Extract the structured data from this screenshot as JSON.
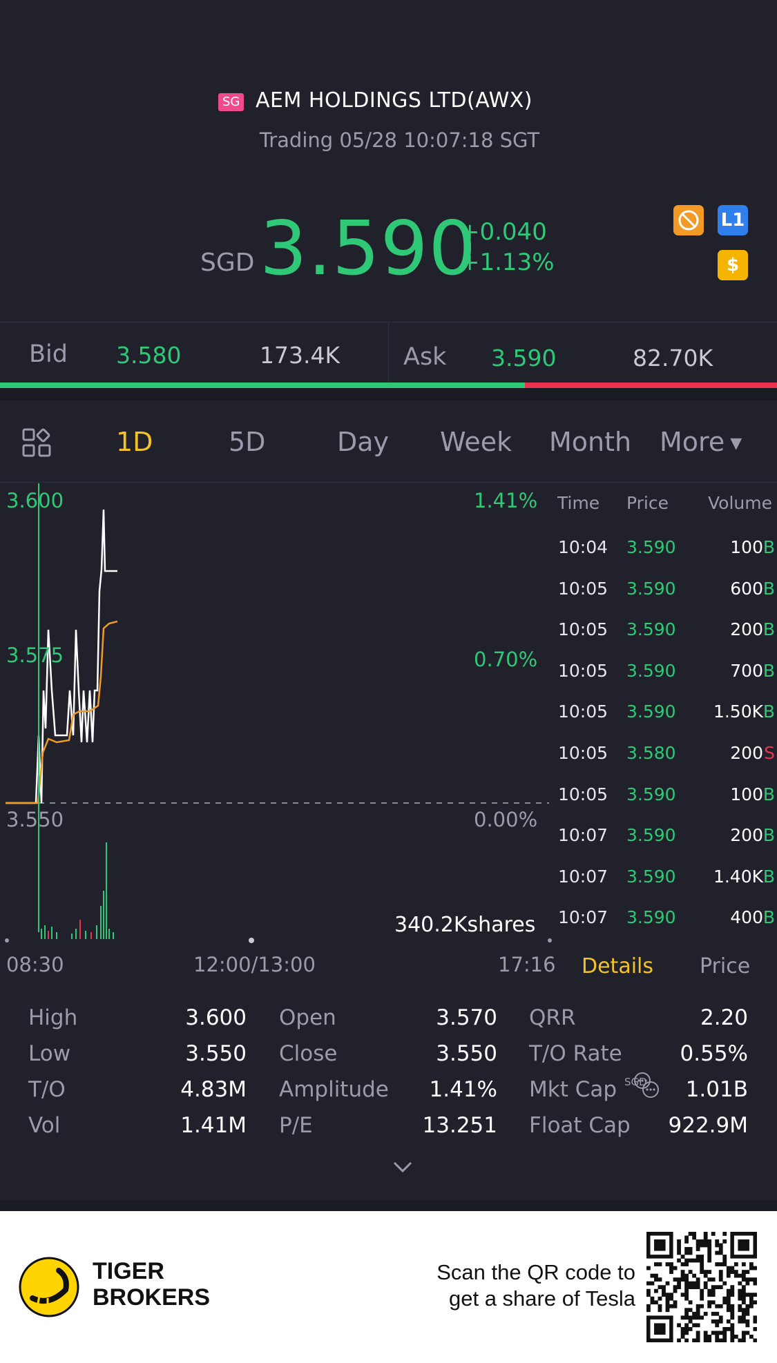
{
  "header": {
    "market_badge": "SG",
    "title": "AEM HOLDINGS LTD(AWX)",
    "status": "Trading 05/28 10:07:18 SGT"
  },
  "quote": {
    "currency": "SGD",
    "price": "3.590",
    "change": "+0.040",
    "change_pct": "+1.13%",
    "icons": [
      "no-short-icon",
      "level1-icon",
      "dollar-icon"
    ],
    "level_icon_text": "L1",
    "dollar_icon_text": "$"
  },
  "bid_ask": {
    "bid_label": "Bid",
    "bid_price": "3.580",
    "bid_size": "173.4K",
    "ask_label": "Ask",
    "ask_price": "3.590",
    "ask_size": "82.70K",
    "bid_fraction": 0.675
  },
  "tabs": [
    "1D",
    "5D",
    "Day",
    "Week",
    "Month",
    "More"
  ],
  "active_tab": "1D",
  "chart": {
    "y_top": "3.600",
    "y_mid": "3.575",
    "y_bottom": "3.550",
    "pct_top": "1.41%",
    "pct_mid": "0.70%",
    "pct_bottom": "0.00%",
    "volume_label": "340.2Kshares",
    "x_start": "08:30",
    "x_mid": "12:00/13:00",
    "x_end": "17:16"
  },
  "ticks": {
    "headers": [
      "Time",
      "Price",
      "Volume"
    ],
    "rows": [
      {
        "time": "10:04",
        "price": "3.590",
        "volume": "100",
        "side": "B"
      },
      {
        "time": "10:05",
        "price": "3.590",
        "volume": "600",
        "side": "B"
      },
      {
        "time": "10:05",
        "price": "3.590",
        "volume": "200",
        "side": "B"
      },
      {
        "time": "10:05",
        "price": "3.590",
        "volume": "700",
        "side": "B"
      },
      {
        "time": "10:05",
        "price": "3.590",
        "volume": "1.50K",
        "side": "B"
      },
      {
        "time": "10:05",
        "price": "3.580",
        "volume": "200",
        "side": "S"
      },
      {
        "time": "10:05",
        "price": "3.590",
        "volume": "100",
        "side": "B"
      },
      {
        "time": "10:07",
        "price": "3.590",
        "volume": "200",
        "side": "B"
      },
      {
        "time": "10:07",
        "price": "3.590",
        "volume": "1.40K",
        "side": "B"
      },
      {
        "time": "10:07",
        "price": "3.590",
        "volume": "400",
        "side": "B"
      }
    ],
    "tab_details": "Details",
    "tab_price": "Price"
  },
  "stats": {
    "col1": [
      [
        "High",
        "3.600"
      ],
      [
        "Low",
        "3.550"
      ],
      [
        "T/O",
        "4.83M"
      ],
      [
        "Vol",
        "1.41M"
      ]
    ],
    "col2": [
      [
        "Open",
        "3.570"
      ],
      [
        "Close",
        "3.550"
      ],
      [
        "Amplitude",
        "1.41%"
      ],
      [
        "P/E",
        "13.251"
      ]
    ],
    "col3": [
      [
        "QRR",
        "2.20"
      ],
      [
        "T/O Rate",
        "0.55%"
      ],
      [
        "Mkt Cap",
        "1.01B"
      ],
      [
        "Float Cap",
        "922.9M"
      ]
    ],
    "mktcap_unit": "SGD"
  },
  "footer": {
    "brand_line1": "TIGER",
    "brand_line2": "BROKERS",
    "promo_line1": "Scan the QR code to",
    "promo_line2": "get a share of Tesla"
  },
  "colors": {
    "up": "#2fc877",
    "down": "#e8344e",
    "accent": "#f2c22b",
    "bg": "#20212b"
  }
}
